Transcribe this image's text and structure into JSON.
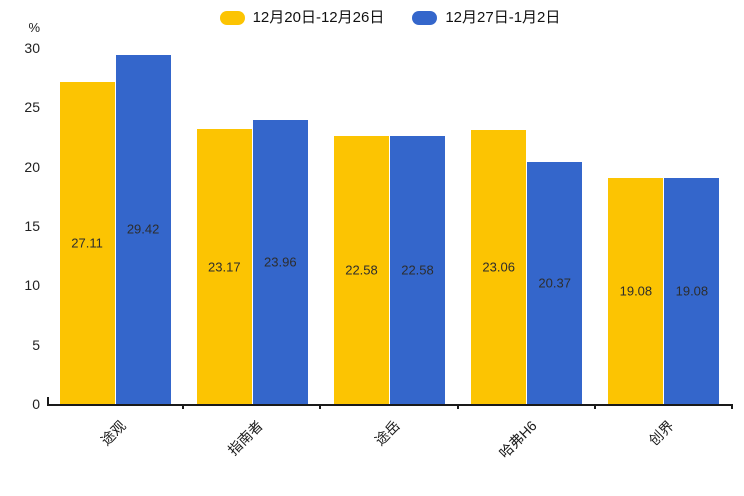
{
  "chart_data": {
    "type": "bar",
    "title": "",
    "ylabel": "%",
    "xlabel": "",
    "categories": [
      "途观",
      "指南者",
      "途岳",
      "哈弗H6",
      "创界"
    ],
    "series": [
      {
        "name": "12月20日-12月26日",
        "color": "#fcc402",
        "values": [
          27.11,
          23.17,
          22.58,
          23.06,
          19.08
        ]
      },
      {
        "name": "12月27日-1月2日",
        "color": "#3466cb",
        "values": [
          29.42,
          23.96,
          22.58,
          20.37,
          19.08
        ]
      }
    ],
    "ylim": [
      0,
      30
    ],
    "yticks": [
      0,
      5,
      10,
      15,
      20,
      25,
      30
    ],
    "legend_position": "top-center",
    "grid": false,
    "value_labels": "center-inside",
    "x_label_rotation": 45
  },
  "colors": {
    "series1": "#fcc402",
    "series2": "#3466cb",
    "axis": "#1a1a1a",
    "tick_text": "#222222",
    "value_label_text": "#2d2d2d",
    "background": "#ffffff"
  }
}
